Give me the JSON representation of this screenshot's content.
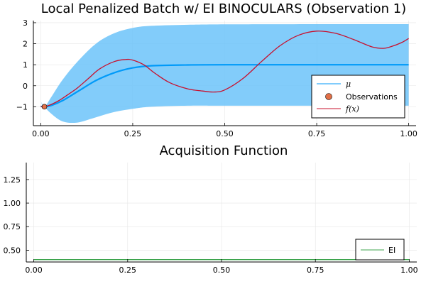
{
  "chart_data": [
    {
      "type": "line",
      "title": "Local Penalized Batch w/ EI BINOCULARS (Observation 1)",
      "xlabel": "",
      "ylabel": "",
      "xlim": [
        -0.02,
        1.02
      ],
      "ylim": [
        -1.9,
        3.1
      ],
      "xticks": [
        0.0,
        0.25,
        0.5,
        0.75,
        1.0
      ],
      "xtick_labels": [
        "0.00",
        "0.25",
        "0.50",
        "0.75",
        "1.00"
      ],
      "yticks": [
        -1,
        0,
        1,
        2,
        3
      ],
      "ytick_labels": [
        "−1",
        "0",
        "1",
        "2",
        "3"
      ],
      "grid": true,
      "legend_position": "bottom-right",
      "series": [
        {
          "name": "μ",
          "kind": "line",
          "color": "#009af9",
          "x": [
            0.0,
            0.01,
            0.03,
            0.06,
            0.1,
            0.15,
            0.2,
            0.25,
            0.3,
            0.4,
            0.5,
            0.75,
            1.0
          ],
          "y": [
            -0.98,
            -1.0,
            -0.93,
            -0.7,
            -0.28,
            0.25,
            0.62,
            0.85,
            0.95,
            0.99,
            1.0,
            1.0,
            1.0
          ]
        },
        {
          "name": "",
          "kind": "band",
          "color": "#6cc3f9",
          "x": [
            0.0,
            0.01,
            0.03,
            0.06,
            0.1,
            0.15,
            0.2,
            0.25,
            0.3,
            0.4,
            0.5,
            0.75,
            1.0
          ],
          "lower": [
            -0.75,
            -1.0,
            -1.35,
            -1.7,
            -1.75,
            -1.5,
            -1.25,
            -1.1,
            -1.0,
            -0.95,
            -0.95,
            -0.95,
            -0.95
          ],
          "upper": [
            -0.75,
            -1.0,
            -0.5,
            0.3,
            1.15,
            2.0,
            2.5,
            2.75,
            2.85,
            2.9,
            2.92,
            2.93,
            2.93
          ]
        },
        {
          "name": "Observations",
          "kind": "scatter",
          "color": "#e26f46",
          "x": [
            0.01
          ],
          "y": [
            -1.0
          ]
        },
        {
          "name": "f(x)",
          "kind": "line",
          "color": "#c8102e",
          "x": [
            0.0,
            0.02,
            0.05,
            0.08,
            0.1,
            0.13,
            0.16,
            0.2,
            0.23,
            0.25,
            0.28,
            0.31,
            0.35,
            0.4,
            0.44,
            0.47,
            0.5,
            0.55,
            0.6,
            0.65,
            0.7,
            0.75,
            0.8,
            0.85,
            0.9,
            0.93,
            0.95,
            0.98,
            1.0
          ],
          "y": [
            -1.0,
            -0.95,
            -0.7,
            -0.35,
            -0.1,
            0.35,
            0.8,
            1.15,
            1.25,
            1.22,
            1.0,
            0.6,
            0.15,
            -0.15,
            -0.25,
            -0.3,
            -0.2,
            0.35,
            1.15,
            1.9,
            2.4,
            2.6,
            2.5,
            2.2,
            1.85,
            1.78,
            1.85,
            2.05,
            2.25
          ]
        }
      ]
    },
    {
      "type": "line",
      "title": "Acquisition Function",
      "xlabel": "",
      "ylabel": "",
      "xlim": [
        -0.02,
        1.02
      ],
      "ylim": [
        0.375,
        1.43
      ],
      "xticks": [
        0.0,
        0.25,
        0.5,
        0.75,
        1.0
      ],
      "xtick_labels": [
        "0.00",
        "0.25",
        "0.50",
        "0.75",
        "1.00"
      ],
      "yticks": [
        0.5,
        0.75,
        1.0,
        1.25
      ],
      "ytick_labels": [
        "0.50",
        "0.75",
        "1.00",
        "1.25"
      ],
      "grid": true,
      "legend_position": "bottom-right",
      "series": [
        {
          "name": "EI",
          "kind": "line",
          "color": "#3da44d",
          "x": [
            0.0,
            1.0
          ],
          "y": [
            0.4,
            0.4
          ]
        }
      ]
    }
  ]
}
